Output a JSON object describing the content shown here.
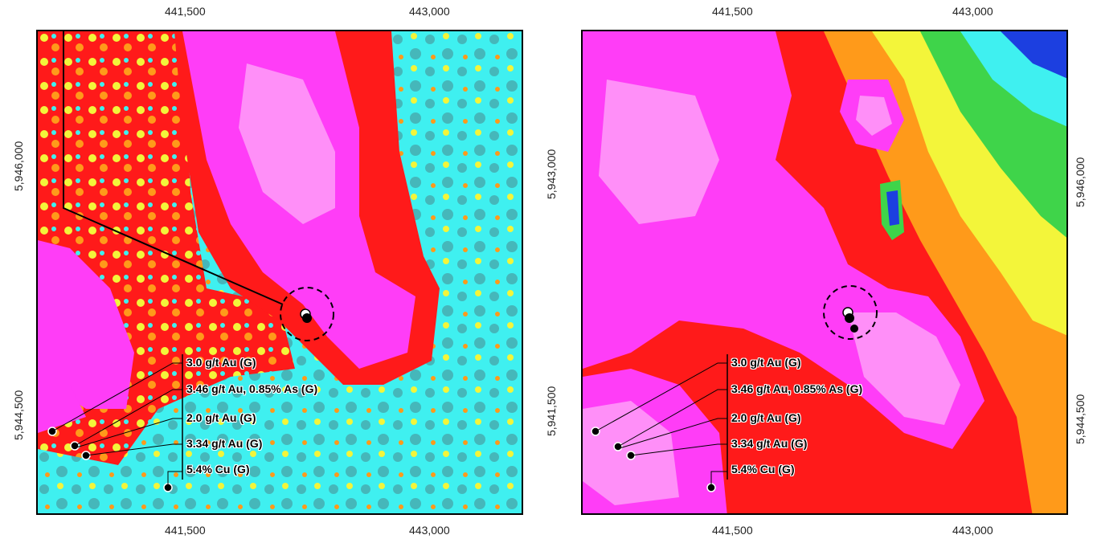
{
  "left_map": {
    "x_ticks_top": [
      "441,500",
      "443,000"
    ],
    "x_ticks_bottom": [
      "441,500",
      "443,000"
    ],
    "y_ticks_left": [
      "5,946,000",
      "5,944,500"
    ],
    "labels": [
      "3.0 g/t Au (G)",
      "3.46 g/t Au, 0.85% As (G)",
      "2.0 g/t Au (G)",
      "3.34 g/t Au (G)",
      "5.4% Cu (G)"
    ]
  },
  "right_map": {
    "x_ticks_top": [
      "441,500",
      "443,000"
    ],
    "x_ticks_bottom": [
      "441,500",
      "443,000"
    ],
    "y_ticks_left": [
      "5,943,000",
      "5,941,500"
    ],
    "y_ticks_right": [
      "5,946,000",
      "5,944,500"
    ],
    "labels": [
      "3.0 g/t Au (G)",
      "3.46 g/t Au, 0.85% As (G)",
      "2.0 g/t Au (G)",
      "3.34 g/t Au (G)",
      "5.4% Cu (G)"
    ]
  },
  "colors": {
    "high": "#ff3df7",
    "upper": "#ff1a1a",
    "mid": "#ff9a1a",
    "yellow": "#f3f53a",
    "cyan": "#3ff0f0",
    "teal": "#45b7ba",
    "green": "#3fd44a",
    "blue": "#1c3fe0"
  }
}
